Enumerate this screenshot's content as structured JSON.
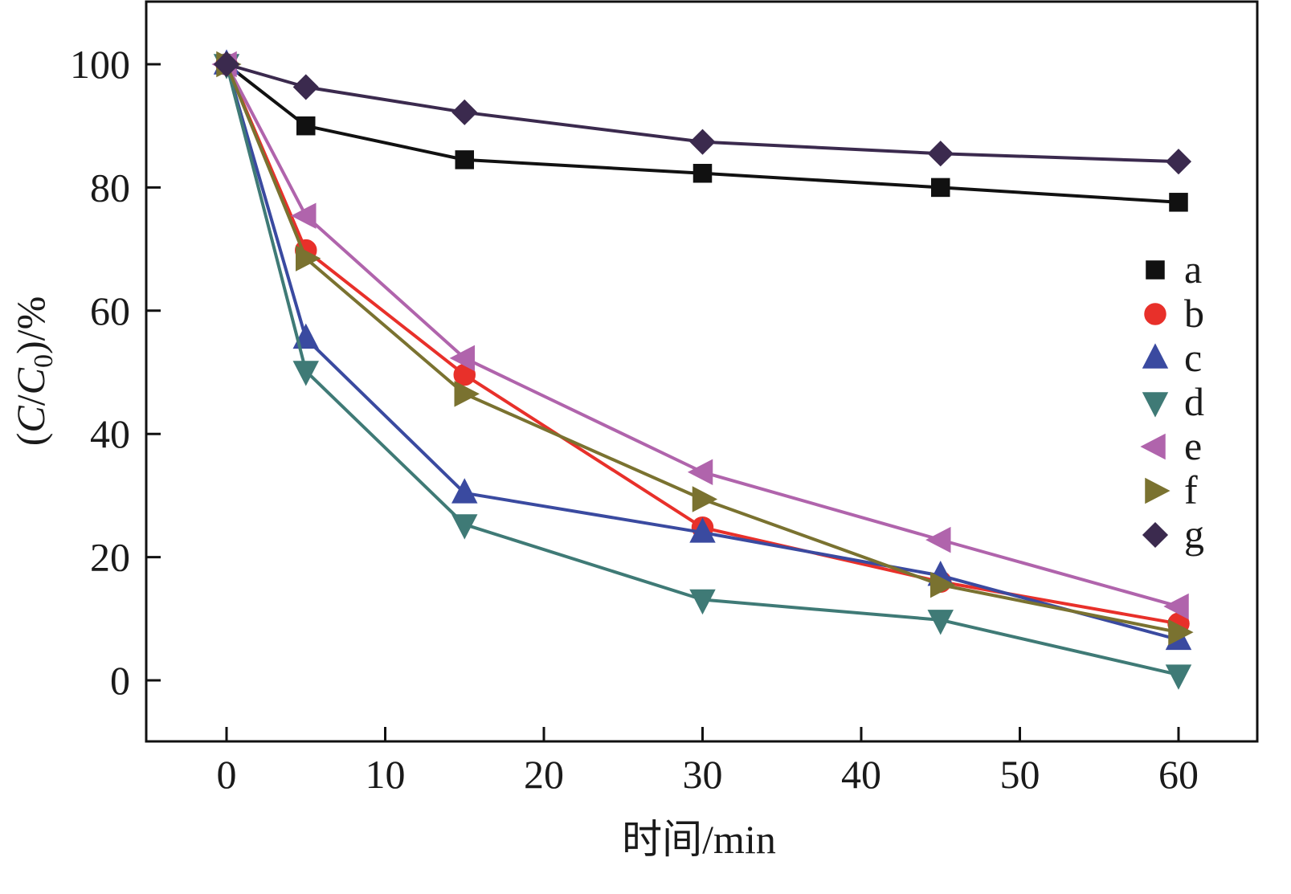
{
  "chart_data": {
    "type": "line",
    "title": "",
    "xlabel": "时间/min",
    "ylabel": "(C/C0)/%",
    "ylabel_parts": {
      "open": "(",
      "c": "C",
      "slash": "/",
      "c0": "C",
      "zero": "0",
      "close": ")/%"
    },
    "xlim": [
      -5,
      65
    ],
    "ylim": [
      -10,
      110
    ],
    "x_ticks": [
      0,
      10,
      20,
      30,
      40,
      50,
      60
    ],
    "x_tick_labels": [
      "0",
      "10",
      "20",
      "30",
      "40",
      "50",
      "60"
    ],
    "y_ticks": [
      0,
      20,
      40,
      60,
      80,
      100
    ],
    "y_tick_labels": [
      "0",
      "20",
      "40",
      "60",
      "80",
      "100"
    ],
    "x": [
      0,
      5,
      15,
      30,
      45,
      60
    ],
    "grid": false,
    "legend_position": "right",
    "series": [
      {
        "name": "a",
        "marker": "square",
        "color": "#111111",
        "values": [
          100,
          90,
          84.5,
          82.3,
          80,
          77.6
        ]
      },
      {
        "name": "b",
        "marker": "circle",
        "color": "#e8302a",
        "values": [
          100,
          69.8,
          49.6,
          24.8,
          16,
          9.2
        ]
      },
      {
        "name": "c",
        "marker": "triangle-up",
        "color": "#3a4aa0",
        "values": [
          100,
          55.5,
          30.4,
          24,
          17,
          6.6
        ]
      },
      {
        "name": "d",
        "marker": "triangle-down",
        "color": "#3f7a76",
        "values": [
          100,
          50.2,
          25.3,
          13.1,
          9.8,
          0.9
        ]
      },
      {
        "name": "e",
        "marker": "triangle-left",
        "color": "#b064ac",
        "values": [
          100,
          75.4,
          52.3,
          33.8,
          22.8,
          12
        ]
      },
      {
        "name": "f",
        "marker": "triangle-right",
        "color": "#7a7230",
        "values": [
          100,
          68.5,
          46.5,
          29.4,
          15.5,
          7.8
        ]
      },
      {
        "name": "g",
        "marker": "diamond",
        "color": "#3b2a4e",
        "values": [
          100,
          96.3,
          92.2,
          87.4,
          85.5,
          84.2
        ]
      }
    ]
  }
}
